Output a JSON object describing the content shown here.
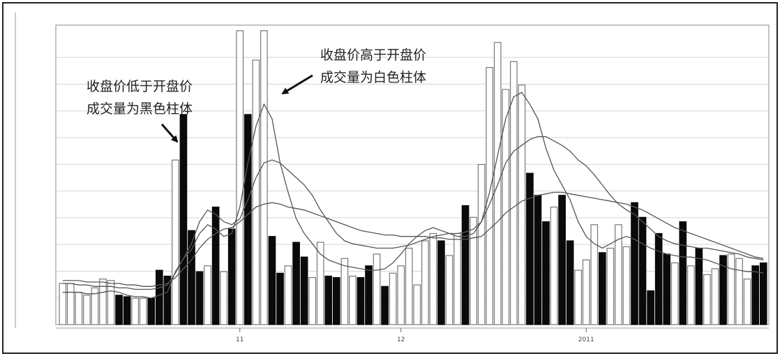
{
  "chart_data": {
    "type": "bar",
    "title": "",
    "xlabel": "",
    "ylabel": "",
    "ylim": [
      0,
      200
    ],
    "grid": true,
    "x_ticks": [
      {
        "index": 22,
        "label": "11"
      },
      {
        "index": 42,
        "label": "12"
      },
      {
        "index": 65,
        "label": "2011"
      }
    ],
    "series": [
      {
        "name": "",
        "values": [
          28,
          28,
          22,
          20,
          25,
          31,
          30,
          20,
          19,
          18,
          18,
          18,
          37,
          33,
          112,
          143,
          64,
          36,
          40,
          80,
          36,
          65,
          200,
          143,
          180,
          200,
          60,
          35,
          40,
          56,
          46,
          32,
          56,
          33,
          32,
          45,
          33,
          32,
          40,
          48,
          26,
          35,
          40,
          52,
          27,
          57,
          62,
          57,
          47,
          62,
          81,
          73,
          109,
          175,
          192,
          160,
          179,
          163,
          103,
          88,
          70,
          80,
          88,
          57,
          37,
          44,
          68,
          49,
          52,
          68,
          53,
          83,
          73,
          23,
          62,
          48,
          42,
          70,
          40,
          52,
          34,
          38,
          47,
          48,
          45,
          31,
          40,
          42
        ],
        "bar_colors": [
          "w",
          "w",
          "w",
          "w",
          "w",
          "w",
          "w",
          "k",
          "k",
          "w",
          "w",
          "k",
          "k",
          "k",
          "w",
          "k",
          "k",
          "k",
          "w",
          "k",
          "w",
          "k",
          "w",
          "k",
          "w",
          "w",
          "k",
          "k",
          "w",
          "k",
          "k",
          "w",
          "w",
          "k",
          "k",
          "w",
          "w",
          "k",
          "k",
          "w",
          "k",
          "w",
          "w",
          "w",
          "w",
          "w",
          "w",
          "k",
          "w",
          "w",
          "k",
          "w",
          "w",
          "w",
          "w",
          "w",
          "w",
          "w",
          "k",
          "k",
          "k",
          "w",
          "k",
          "k",
          "w",
          "w",
          "w",
          "k",
          "w",
          "w",
          "w",
          "k",
          "k",
          "k",
          "k",
          "k",
          "w",
          "k",
          "w",
          "k",
          "w",
          "w",
          "k",
          "w",
          "w",
          "w",
          "k",
          "k"
        ]
      },
      {
        "name": "",
        "type": "line",
        "values": [
          22,
          22,
          22,
          21,
          21,
          22,
          23,
          22,
          20,
          19,
          19,
          18,
          20,
          22,
          36,
          45,
          51,
          62,
          68,
          65,
          60,
          62,
          80,
          110,
          135,
          150,
          140,
          110,
          90,
          72,
          62,
          55,
          48,
          44,
          42,
          40,
          39,
          38,
          37,
          37,
          38,
          42,
          48,
          55,
          60,
          64,
          66,
          64,
          62,
          60,
          60,
          62,
          70,
          90,
          115,
          140,
          155,
          158,
          150,
          140,
          120,
          105,
          95,
          85,
          70,
          60,
          55,
          52,
          55,
          58,
          60,
          58,
          55,
          52,
          50,
          48,
          47,
          46,
          46,
          45,
          44,
          42,
          40,
          38,
          37,
          36,
          36,
          35
        ]
      },
      {
        "name": "",
        "type": "line",
        "values": [
          28,
          28,
          27,
          27,
          26,
          26,
          26,
          25,
          25,
          24,
          24,
          24,
          25,
          27,
          35,
          45,
          55,
          70,
          78,
          75,
          70,
          68,
          72,
          85,
          100,
          110,
          112,
          110,
          105,
          100,
          95,
          88,
          78,
          70,
          62,
          57,
          55,
          54,
          53,
          52,
          52,
          52,
          53,
          54,
          56,
          58,
          60,
          61,
          62,
          62,
          63,
          65,
          70,
          82,
          95,
          110,
          118,
          122,
          126,
          128,
          128,
          125,
          122,
          118,
          112,
          108,
          102,
          95,
          88,
          82,
          78,
          75,
          70,
          65,
          60,
          57,
          55,
          54,
          53,
          52,
          52,
          51,
          50,
          49,
          48,
          46,
          45,
          44
        ]
      },
      {
        "name": "",
        "type": "line",
        "values": [
          30,
          30,
          30,
          29,
          29,
          29,
          28,
          28,
          27,
          27,
          26,
          26,
          27,
          28,
          32,
          38,
          44,
          52,
          58,
          62,
          65,
          66,
          70,
          75,
          80,
          82,
          83,
          82,
          80,
          79,
          78,
          76,
          74,
          72,
          70,
          68,
          66,
          64,
          63,
          62,
          61,
          61,
          60,
          60,
          60,
          60,
          59,
          59,
          58,
          58,
          58,
          59,
          60,
          65,
          70,
          76,
          80,
          84,
          86,
          88,
          89,
          90,
          90,
          89,
          88,
          87,
          86,
          85,
          84,
          83,
          82,
          80,
          78,
          75,
          72,
          69,
          66,
          64,
          62,
          60,
          58,
          56,
          54,
          52,
          50,
          48,
          46,
          45
        ]
      }
    ],
    "annotations": [
      {
        "text_line1": "收盘价低于开盘价",
        "text_line2": "成交量为黑色柱体",
        "target_index": 15
      },
      {
        "text_line1": "收盘价高于开盘价",
        "text_line2": "成交量为白色柱体",
        "target_index": 24
      }
    ]
  }
}
